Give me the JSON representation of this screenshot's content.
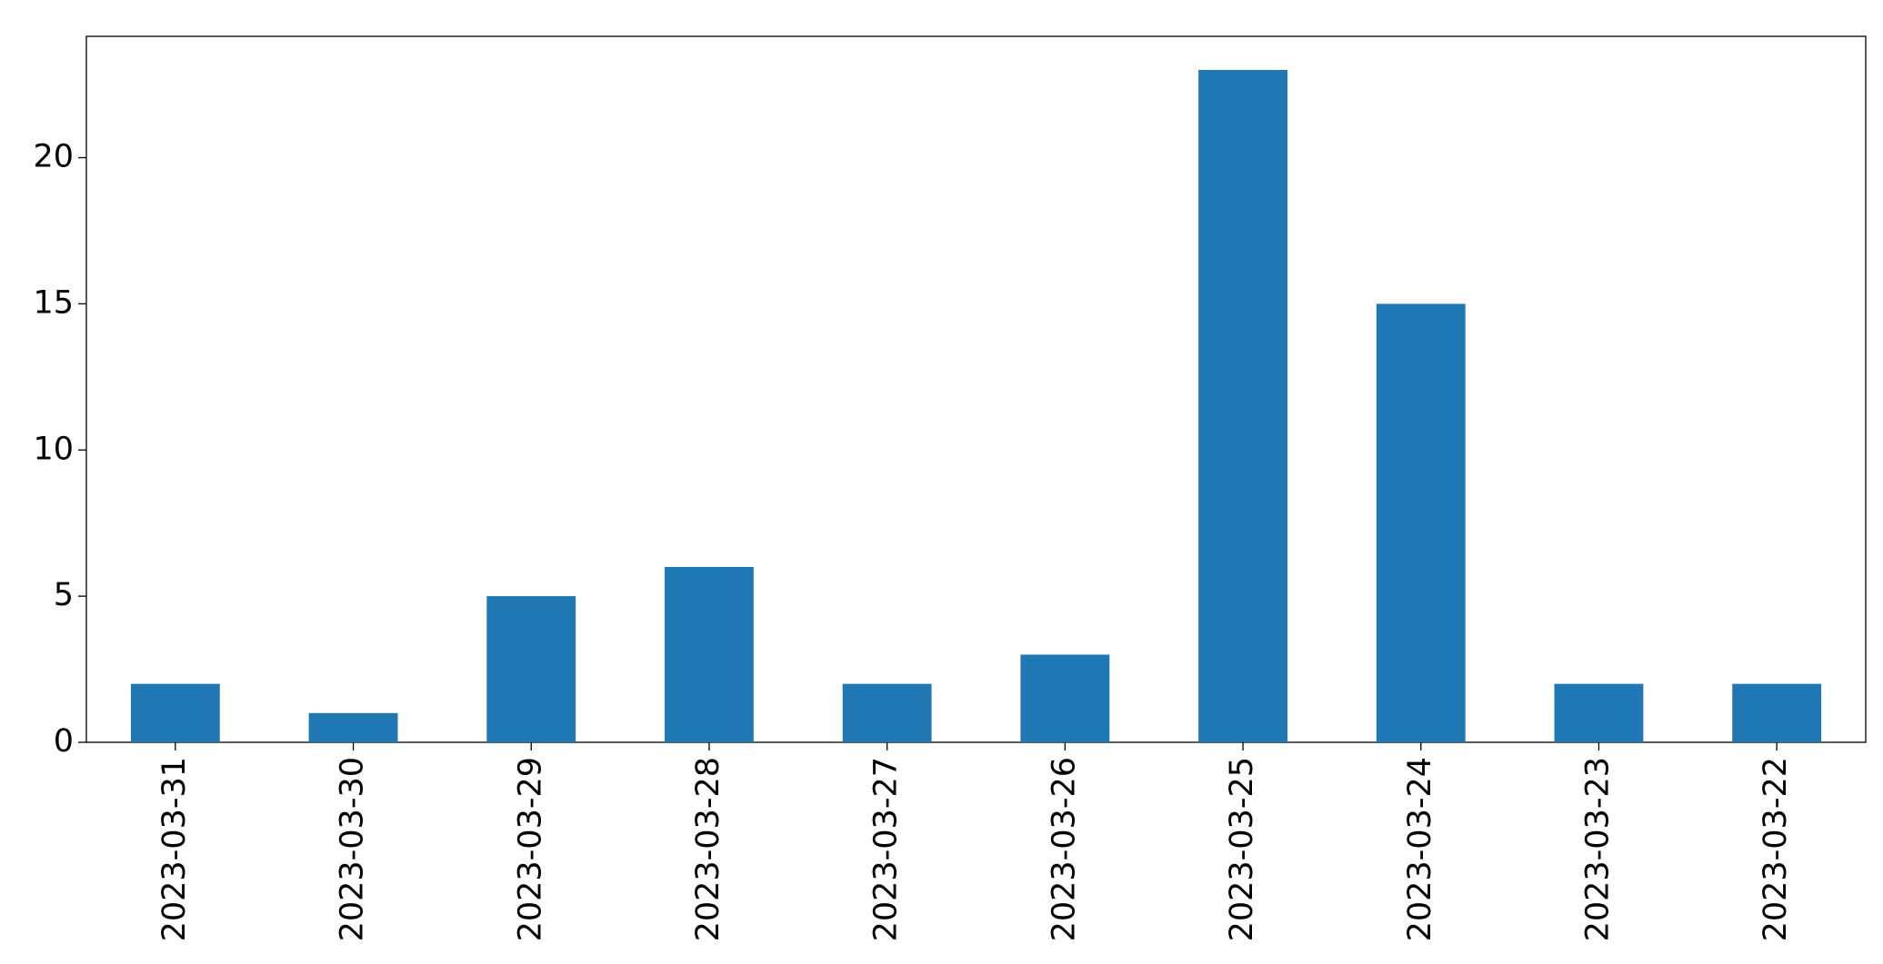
{
  "chart_data": {
    "type": "bar",
    "categories": [
      "2023-03-31",
      "2023-03-30",
      "2023-03-29",
      "2023-03-28",
      "2023-03-27",
      "2023-03-26",
      "2023-03-25",
      "2023-03-24",
      "2023-03-23",
      "2023-03-22"
    ],
    "values": [
      2,
      1,
      5,
      6,
      2,
      3,
      23,
      15,
      2,
      2
    ],
    "color": "#1f77b4",
    "ylim": [
      0,
      24.15
    ],
    "yticks": [
      0,
      5,
      10,
      15,
      20
    ],
    "grid": false
  }
}
